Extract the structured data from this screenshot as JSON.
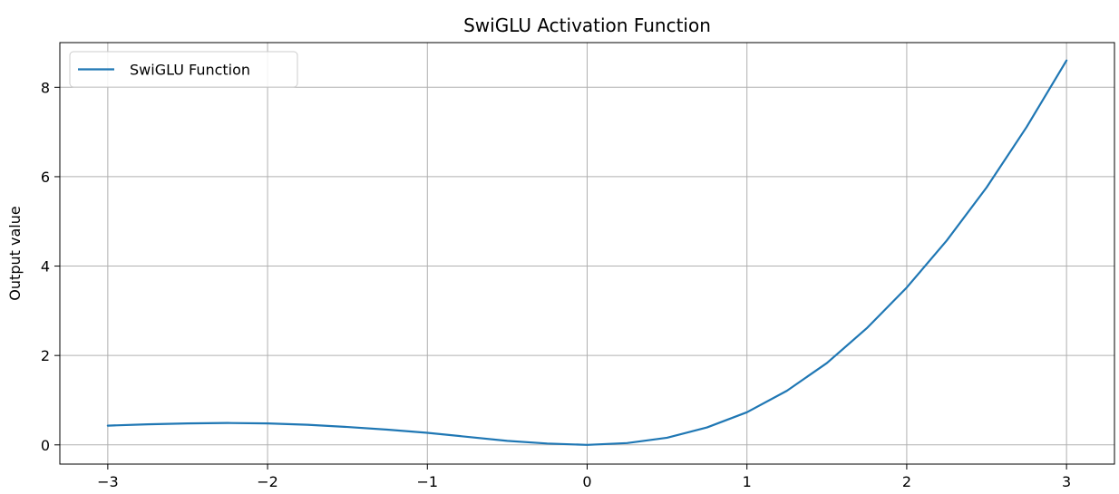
{
  "chart_data": {
    "type": "line",
    "title": "SwiGLU Activation Function",
    "xlabel": "",
    "ylabel": "Output value",
    "xlim": [
      -3.3,
      3.3
    ],
    "ylim": [
      -0.43,
      9.0
    ],
    "xticks": [
      -3,
      -2,
      -1,
      0,
      1,
      2,
      3
    ],
    "xtick_labels": [
      "−3",
      "−2",
      "−1",
      "0",
      "1",
      "2",
      "3"
    ],
    "yticks": [
      0,
      2,
      4,
      6,
      8
    ],
    "ytick_labels": [
      "0",
      "2",
      "4",
      "6",
      "8"
    ],
    "grid": true,
    "legend": {
      "placement": "top-left"
    },
    "series": [
      {
        "name": "SwiGLU Function",
        "color": "#1f77b4",
        "x": [
          -3.0,
          -2.75,
          -2.5,
          -2.25,
          -2.0,
          -1.75,
          -1.5,
          -1.25,
          -1.0,
          -0.75,
          -0.5,
          -0.25,
          0.0,
          0.25,
          0.5,
          0.75,
          1.0,
          1.25,
          1.5,
          1.75,
          2.0,
          2.25,
          2.5,
          2.75,
          3.0
        ],
        "y": [
          0.43,
          0.46,
          0.48,
          0.49,
          0.48,
          0.45,
          0.4,
          0.34,
          0.27,
          0.18,
          0.09,
          0.03,
          0.0,
          0.04,
          0.16,
          0.39,
          0.73,
          1.21,
          1.83,
          2.61,
          3.52,
          4.57,
          5.76,
          7.11,
          8.6
        ]
      }
    ]
  }
}
